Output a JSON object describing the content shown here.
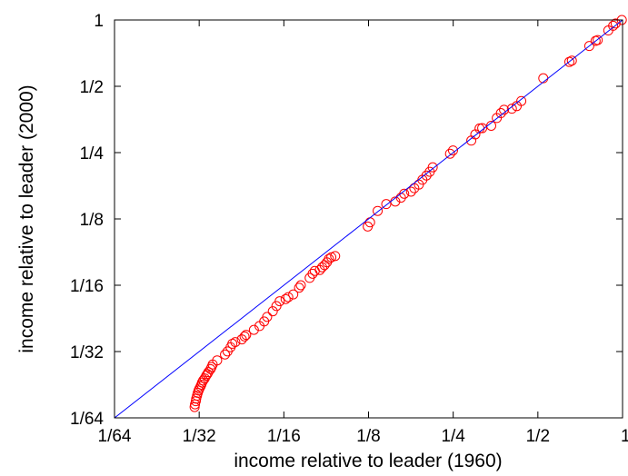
{
  "chart_data": {
    "type": "scatter",
    "xscale": "log2",
    "yscale": "log2",
    "xlim": [
      0.015625,
      1
    ],
    "ylim": [
      0.015625,
      1
    ],
    "xlabel": "income relative to leader (1960)",
    "ylabel": "income relative to leader (2000)",
    "xticks": [
      {
        "value": 0.015625,
        "label": "1/64"
      },
      {
        "value": 0.03125,
        "label": "1/32"
      },
      {
        "value": 0.0625,
        "label": "1/16"
      },
      {
        "value": 0.125,
        "label": "1/8"
      },
      {
        "value": 0.25,
        "label": "1/4"
      },
      {
        "value": 0.5,
        "label": "1/2"
      },
      {
        "value": 1,
        "label": "1"
      }
    ],
    "yticks": [
      {
        "value": 0.015625,
        "label": "1/64"
      },
      {
        "value": 0.03125,
        "label": "1/32"
      },
      {
        "value": 0.0625,
        "label": "1/16"
      },
      {
        "value": 0.125,
        "label": "1/8"
      },
      {
        "value": 0.25,
        "label": "1/4"
      },
      {
        "value": 0.5,
        "label": "1/2"
      },
      {
        "value": 1,
        "label": "1"
      }
    ],
    "grid": false,
    "legend": "none",
    "reference_line": {
      "x": [
        0.015625,
        1
      ],
      "y": [
        0.015625,
        1
      ],
      "color": "#0000ff"
    },
    "series": [
      {
        "marker": "open-circle",
        "color": "#ff0000",
        "points": [
          [
            0.0301,
            0.0175
          ],
          [
            0.0302,
            0.018
          ],
          [
            0.0304,
            0.0186
          ],
          [
            0.0305,
            0.0191
          ],
          [
            0.0307,
            0.0197
          ],
          [
            0.0309,
            0.0203
          ],
          [
            0.0311,
            0.0208
          ],
          [
            0.0313,
            0.0212
          ],
          [
            0.0316,
            0.0217
          ],
          [
            0.0318,
            0.0221
          ],
          [
            0.032,
            0.0226
          ],
          [
            0.0323,
            0.0231
          ],
          [
            0.0327,
            0.0236
          ],
          [
            0.0331,
            0.0243
          ],
          [
            0.0334,
            0.0247
          ],
          [
            0.0337,
            0.0252
          ],
          [
            0.0343,
            0.026
          ],
          [
            0.0346,
            0.0266
          ],
          [
            0.0349,
            0.0273
          ],
          [
            0.0362,
            0.0285
          ],
          [
            0.0386,
            0.0303
          ],
          [
            0.0394,
            0.0313
          ],
          [
            0.0404,
            0.0327
          ],
          [
            0.041,
            0.0339
          ],
          [
            0.042,
            0.0345
          ],
          [
            0.0443,
            0.0355
          ],
          [
            0.0453,
            0.0366
          ],
          [
            0.0459,
            0.0372
          ],
          [
            0.0489,
            0.0392
          ],
          [
            0.0512,
            0.0408
          ],
          [
            0.0532,
            0.0428
          ],
          [
            0.0545,
            0.0449
          ],
          [
            0.0571,
            0.0476
          ],
          [
            0.0588,
            0.0503
          ],
          [
            0.0604,
            0.0529
          ],
          [
            0.0634,
            0.0541
          ],
          [
            0.0648,
            0.0552
          ],
          [
            0.0675,
            0.0568
          ],
          [
            0.0708,
            0.0609
          ],
          [
            0.0718,
            0.0625
          ],
          [
            0.0772,
            0.0675
          ],
          [
            0.0791,
            0.0705
          ],
          [
            0.0805,
            0.0726
          ],
          [
            0.0839,
            0.0733
          ],
          [
            0.0855,
            0.0754
          ],
          [
            0.0872,
            0.0771
          ],
          [
            0.0889,
            0.0794
          ],
          [
            0.0904,
            0.0823
          ],
          [
            0.0922,
            0.0837
          ],
          [
            0.0951,
            0.0848
          ],
          [
            0.1242,
            0.1155
          ],
          [
            0.1266,
            0.1206
          ],
          [
            0.1347,
            0.1359
          ],
          [
            0.1445,
            0.146
          ],
          [
            0.1556,
            0.1499
          ],
          [
            0.163,
            0.1561
          ],
          [
            0.1674,
            0.1626
          ],
          [
            0.177,
            0.1662
          ],
          [
            0.1818,
            0.1724
          ],
          [
            0.1888,
            0.179
          ],
          [
            0.1943,
            0.1882
          ],
          [
            0.2008,
            0.1967
          ],
          [
            0.2063,
            0.2046
          ],
          [
            0.2114,
            0.2144
          ],
          [
            0.2436,
            0.2471
          ],
          [
            0.2496,
            0.2558
          ],
          [
            0.2899,
            0.2835
          ],
          [
            0.2996,
            0.3025
          ],
          [
            0.3102,
            0.3218
          ],
          [
            0.317,
            0.3229
          ],
          [
            0.3413,
            0.331
          ],
          [
            0.3572,
            0.3589
          ],
          [
            0.3695,
            0.3777
          ],
          [
            0.379,
            0.3912
          ],
          [
            0.4042,
            0.3956
          ],
          [
            0.4204,
            0.4065
          ],
          [
            0.4365,
            0.4287
          ],
          [
            0.5226,
            0.5439
          ],
          [
            0.647,
            0.645
          ],
          [
            0.6604,
            0.6537
          ],
          [
            0.7617,
            0.7617
          ],
          [
            0.802,
            0.8041
          ],
          [
            0.816,
            0.8106
          ],
          [
            0.89,
            0.8965
          ],
          [
            0.926,
            0.9411
          ],
          [
            0.945,
            0.9643
          ],
          [
            0.994,
            1.0
          ]
        ]
      }
    ]
  }
}
